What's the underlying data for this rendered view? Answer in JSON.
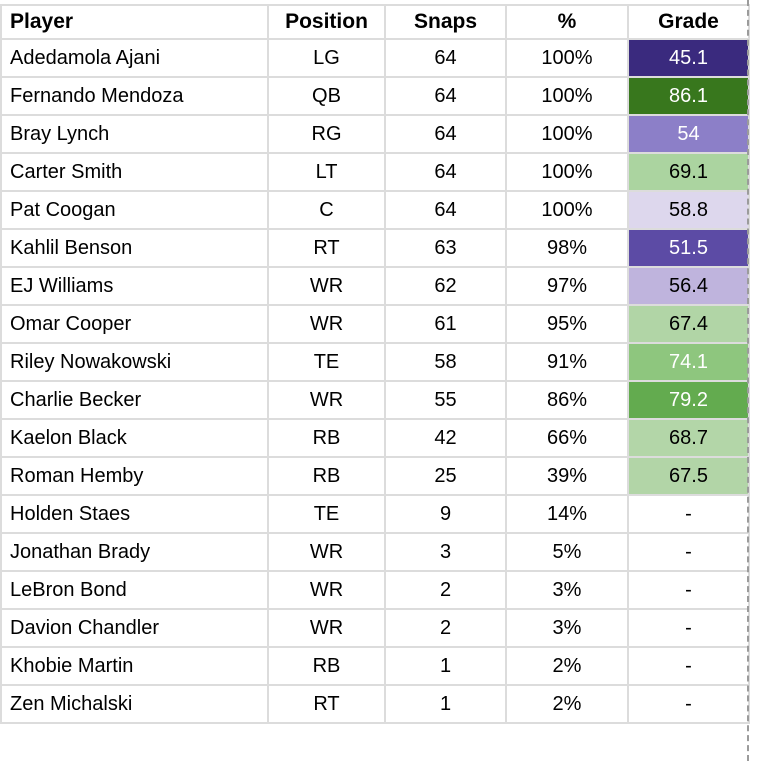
{
  "table": {
    "columns": [
      {
        "label": "Player"
      },
      {
        "label": "Position"
      },
      {
        "label": "Snaps"
      },
      {
        "label": "%"
      },
      {
        "label": "Grade"
      }
    ],
    "rows": [
      {
        "player": "Adedamola Ajani",
        "position": "LG",
        "snaps": "64",
        "pct": "100%",
        "grade": "45.1",
        "grade_bg": "#3a2a7e",
        "grade_text": "#ffffff"
      },
      {
        "player": "Fernando Mendoza",
        "position": "QB",
        "snaps": "64",
        "pct": "100%",
        "grade": "86.1",
        "grade_bg": "#38771d",
        "grade_text": "#ffffff"
      },
      {
        "player": "Bray Lynch",
        "position": "RG",
        "snaps": "64",
        "pct": "100%",
        "grade": "54",
        "grade_bg": "#8c7fc8",
        "grade_text": "#ffffff"
      },
      {
        "player": "Carter Smith",
        "position": "LT",
        "snaps": "64",
        "pct": "100%",
        "grade": "69.1",
        "grade_bg": "#abd4a0",
        "grade_text": "#000000"
      },
      {
        "player": "Pat Coogan",
        "position": "C",
        "snaps": "64",
        "pct": "100%",
        "grade": "58.8",
        "grade_bg": "#ddd7ed",
        "grade_text": "#000000"
      },
      {
        "player": "Kahlil Benson",
        "position": "RT",
        "snaps": "63",
        "pct": "98%",
        "grade": "51.5",
        "grade_bg": "#5c4ba5",
        "grade_text": "#ffffff"
      },
      {
        "player": "EJ Williams",
        "position": "WR",
        "snaps": "62",
        "pct": "97%",
        "grade": "56.4",
        "grade_bg": "#bfb4dd",
        "grade_text": "#000000"
      },
      {
        "player": "Omar Cooper",
        "position": "WR",
        "snaps": "61",
        "pct": "95%",
        "grade": "67.4",
        "grade_bg": "#b1d5a6",
        "grade_text": "#000000"
      },
      {
        "player": "Riley Nowakowski",
        "position": "TE",
        "snaps": "58",
        "pct": "91%",
        "grade": "74.1",
        "grade_bg": "#8ec67e",
        "grade_text": "#ffffff"
      },
      {
        "player": "Charlie Becker",
        "position": "WR",
        "snaps": "55",
        "pct": "86%",
        "grade": "79.2",
        "grade_bg": "#63ab4f",
        "grade_text": "#ffffff"
      },
      {
        "player": "Kaelon Black",
        "position": "RB",
        "snaps": "42",
        "pct": "66%",
        "grade": "68.7",
        "grade_bg": "#b3d6a8",
        "grade_text": "#000000"
      },
      {
        "player": "Roman Hemby",
        "position": "RB",
        "snaps": "25",
        "pct": "39%",
        "grade": "67.5",
        "grade_bg": "#b2d5a7",
        "grade_text": "#000000"
      },
      {
        "player": "Holden Staes",
        "position": "TE",
        "snaps": "9",
        "pct": "14%",
        "grade": "-",
        "grade_bg": "#ffffff",
        "grade_text": "#000000"
      },
      {
        "player": "Jonathan Brady",
        "position": "WR",
        "snaps": "3",
        "pct": "5%",
        "grade": "-",
        "grade_bg": "#ffffff",
        "grade_text": "#000000"
      },
      {
        "player": "LeBron Bond",
        "position": "WR",
        "snaps": "2",
        "pct": "3%",
        "grade": "-",
        "grade_bg": "#ffffff",
        "grade_text": "#000000"
      },
      {
        "player": "Davion Chandler",
        "position": "WR",
        "snaps": "2",
        "pct": "3%",
        "grade": "-",
        "grade_bg": "#ffffff",
        "grade_text": "#000000"
      },
      {
        "player": "Khobie Martin",
        "position": "RB",
        "snaps": "1",
        "pct": "2%",
        "grade": "-",
        "grade_bg": "#ffffff",
        "grade_text": "#000000"
      },
      {
        "player": "Zen Michalski",
        "position": "RT",
        "snaps": "1",
        "pct": "2%",
        "grade": "-",
        "grade_bg": "#ffffff",
        "grade_text": "#000000"
      }
    ]
  },
  "colors": {
    "gridline": "#dcdcdc",
    "page_break_dash": "#9b9b9b",
    "grade_scale_low": "#3a2a7e",
    "grade_scale_high": "#38771d",
    "text": "#000000"
  }
}
